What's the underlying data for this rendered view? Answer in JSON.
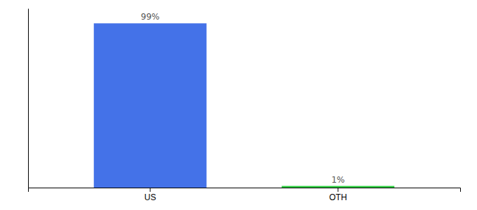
{
  "chart_data": {
    "type": "bar",
    "categories": [
      "US",
      "OTH"
    ],
    "values": [
      99,
      1
    ],
    "value_labels": [
      "99%",
      "1%"
    ],
    "colors": [
      "#4472e8",
      "#2ecc40"
    ],
    "ylim": [
      0,
      108
    ],
    "grid": false,
    "data_labels": true,
    "tick_labels": "x"
  }
}
